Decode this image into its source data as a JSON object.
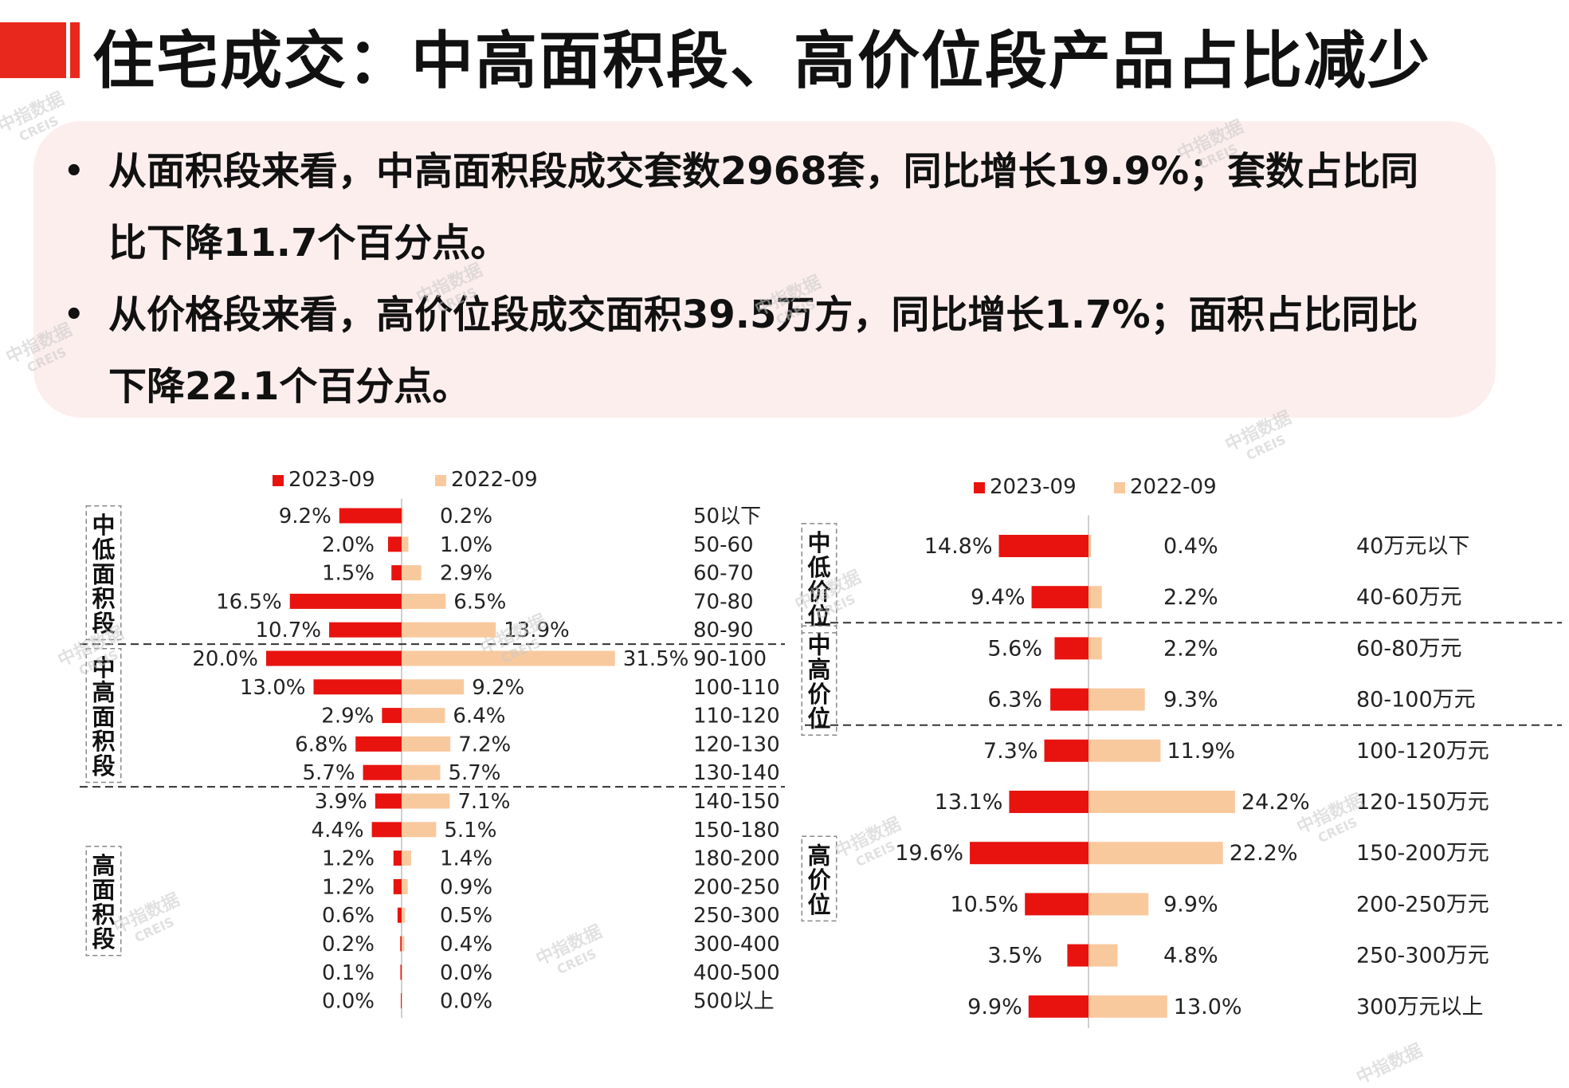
{
  "title": "住宅成交：中高面积段、高价位段产品占比减少",
  "bullets": [
    {
      "line1": "从面积段来看，中高面积段成交套数2968套，同比增长19.9%；套数占比同",
      "line2": "比下降11.7个百分点。"
    },
    {
      "line1": "从价格段来看，高价位段成交面积39.5万方，同比增长1.7%；面积占比同比",
      "line2": "下降22.1个百分点。"
    }
  ],
  "watermark": {
    "cn": "中指数据",
    "en": "CREIS"
  },
  "colors": {
    "current": "#e8130f",
    "previous": "#f9c99e",
    "accent": "#e8281c"
  },
  "chart_data": [
    {
      "type": "bar",
      "orientation": "butterfly",
      "legend_position": "top",
      "categories": [
        "50以下",
        "50-60",
        "60-70",
        "70-80",
        "80-90",
        "90-100",
        "100-110",
        "110-120",
        "120-130",
        "130-140",
        "140-150",
        "150-180",
        "180-200",
        "200-250",
        "250-300",
        "300-400",
        "400-500",
        "500以上"
      ],
      "series": [
        {
          "name": "2023-09",
          "values": [
            9.2,
            2.0,
            1.5,
            16.5,
            10.7,
            20.0,
            13.0,
            2.9,
            6.8,
            5.7,
            3.9,
            4.4,
            1.2,
            1.2,
            0.6,
            0.2,
            0.1,
            0.0
          ]
        },
        {
          "name": "2022-09",
          "values": [
            0.2,
            1.0,
            2.9,
            6.5,
            13.9,
            31.5,
            9.2,
            6.4,
            7.2,
            5.7,
            7.1,
            5.1,
            1.4,
            0.9,
            0.5,
            0.4,
            0.0,
            0.0
          ]
        }
      ],
      "value_labels_left": [
        "9.2%",
        "2.0%",
        "1.5%",
        "16.5%",
        "10.7%",
        "20.0%",
        "13.0%",
        "2.9%",
        "6.8%",
        "5.7%",
        "3.9%",
        "4.4%",
        "1.2%",
        "1.2%",
        "0.6%",
        "0.2%",
        "0.1%",
        "0.0%"
      ],
      "value_labels_right": [
        "0.2%",
        "1.0%",
        "2.9%",
        "6.5%",
        "13.9%",
        "31.5%",
        "9.2%",
        "6.4%",
        "7.2%",
        "5.7%",
        "7.1%",
        "5.1%",
        "1.4%",
        "0.9%",
        "0.5%",
        "0.4%",
        "0.0%",
        "0.0%"
      ],
      "groups": [
        {
          "label": "中低面积段",
          "from": 0,
          "to": 4
        },
        {
          "label": "中高面积段",
          "from": 5,
          "to": 9
        },
        {
          "label": "高面积段",
          "from": 10,
          "to": 17
        }
      ]
    },
    {
      "type": "bar",
      "orientation": "butterfly",
      "legend_position": "top",
      "categories": [
        "40万元以下",
        "40-60万元",
        "60-80万元",
        "80-100万元",
        "100-120万元",
        "120-150万元",
        "150-200万元",
        "200-250万元",
        "250-300万元",
        "300万元以上"
      ],
      "series": [
        {
          "name": "2023-09",
          "values": [
            14.8,
            9.4,
            5.6,
            6.3,
            7.3,
            13.1,
            19.6,
            10.5,
            3.5,
            9.9
          ]
        },
        {
          "name": "2022-09",
          "values": [
            0.4,
            2.2,
            2.2,
            9.3,
            11.9,
            24.2,
            22.2,
            9.9,
            4.8,
            13.0
          ]
        }
      ],
      "value_labels_left": [
        "14.8%",
        "9.4%",
        "5.6%",
        "6.3%",
        "7.3%",
        "13.1%",
        "19.6%",
        "10.5%",
        "3.5%",
        "9.9%"
      ],
      "value_labels_right": [
        "0.4%",
        "2.2%",
        "2.2%",
        "9.3%",
        "11.9%",
        "24.2%",
        "22.2%",
        "9.9%",
        "4.8%",
        "13.0%"
      ],
      "groups": [
        {
          "label": "中低价位",
          "from": 0,
          "to": 1
        },
        {
          "label": "中高价位",
          "from": 2,
          "to": 3
        },
        {
          "label": "高价位",
          "from": 4,
          "to": 9
        }
      ]
    }
  ]
}
